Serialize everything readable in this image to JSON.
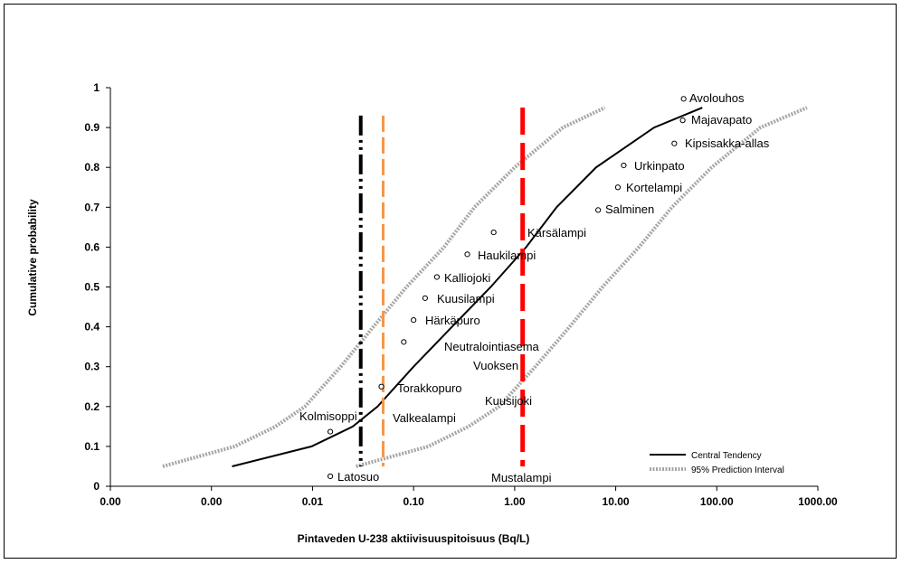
{
  "chart_data": {
    "type": "line",
    "xlabel": "Pintaveden U-238 aktiivisuuspitoisuus (Bq/L)",
    "ylabel": "Cumulative probability",
    "x_scale": "log",
    "xlim": [
      0.0001,
      1000
    ],
    "ylim": [
      0,
      1
    ],
    "grid": false,
    "legend_position": "bottom-right",
    "x_ticks": [
      {
        "value": 0.0001,
        "label": "0.00"
      },
      {
        "value": 0.001,
        "label": "0.00"
      },
      {
        "value": 0.01,
        "label": "0.01"
      },
      {
        "value": 0.1,
        "label": "0.10"
      },
      {
        "value": 1,
        "label": "1.00"
      },
      {
        "value": 10,
        "label": "10.00"
      },
      {
        "value": 100,
        "label": "100.00"
      },
      {
        "value": 1000,
        "label": "1000.00"
      }
    ],
    "y_ticks": [
      {
        "value": 0,
        "label": "0"
      },
      {
        "value": 0.1,
        "label": "0.1"
      },
      {
        "value": 0.2,
        "label": "0.2"
      },
      {
        "value": 0.3,
        "label": "0.3"
      },
      {
        "value": 0.4,
        "label": "0.4"
      },
      {
        "value": 0.5,
        "label": "0.5"
      },
      {
        "value": 0.6,
        "label": "0.6"
      },
      {
        "value": 0.7,
        "label": "0.7"
      },
      {
        "value": 0.8,
        "label": "0.8"
      },
      {
        "value": 0.9,
        "label": "0.9"
      },
      {
        "value": 1,
        "label": "1"
      }
    ],
    "series": [
      {
        "name": "Central Tendency",
        "style": "solid",
        "color": "#000000",
        "x": [
          0.0016,
          0.0098,
          0.025,
          0.044,
          0.1,
          0.24,
          0.58,
          1.3,
          2.6,
          6.4,
          24,
          72
        ],
        "y": [
          0.05,
          0.1,
          0.15,
          0.2,
          0.3,
          0.4,
          0.5,
          0.6,
          0.7,
          0.8,
          0.9,
          0.95
        ]
      },
      {
        "name": "95% Prediction Interval",
        "style": "dotted",
        "color": "#a6a6a6",
        "x": [
          0.00033,
          0.0017,
          0.0043,
          0.0084,
          0.019,
          0.04,
          0.085,
          0.2,
          0.4,
          1.0,
          3.0,
          7.8
        ],
        "y": [
          0.05,
          0.1,
          0.15,
          0.2,
          0.3,
          0.4,
          0.5,
          0.6,
          0.7,
          0.8,
          0.9,
          0.95
        ]
      },
      {
        "name": "",
        "style": "dotted",
        "color": "#a6a6a6",
        "x": [
          0.027,
          0.14,
          0.35,
          0.7,
          1.6,
          3.5,
          7.4,
          17,
          36,
          89,
          270,
          780
        ],
        "y": [
          0.05,
          0.1,
          0.15,
          0.2,
          0.3,
          0.4,
          0.5,
          0.6,
          0.7,
          0.8,
          0.9,
          0.95
        ]
      }
    ],
    "reference_lines": [
      {
        "x": 0.03,
        "y_range": [
          0.05,
          0.93
        ],
        "color": "#000000",
        "style": "dash-dot-dot"
      },
      {
        "x": 0.05,
        "y_range": [
          0.05,
          0.93
        ],
        "color": "#f79646",
        "style": "dashed"
      },
      {
        "x": 1.2,
        "y_range": [
          0.05,
          0.95
        ],
        "color": "#ff0000",
        "style": "dashed"
      }
    ],
    "points": [
      {
        "name": "Latosuo",
        "x": 0.015,
        "y": 0.025
      },
      {
        "name": "Kolmisoppi",
        "x": 0.015,
        "y": 0.137
      },
      {
        "name": "Torakkopuro",
        "x": 0.048,
        "y": 0.25
      },
      {
        "name": "Neutralointiasema",
        "x": 0.08,
        "y": 0.362
      },
      {
        "name": "Härkäpuro",
        "x": 0.1,
        "y": 0.417
      },
      {
        "name": "Kuusilampi",
        "x": 0.13,
        "y": 0.472
      },
      {
        "name": "Kalliojoki",
        "x": 0.17,
        "y": 0.525
      },
      {
        "name": "Haukilampi",
        "x": 0.34,
        "y": 0.582
      },
      {
        "name": "Kärsälampi",
        "x": 0.62,
        "y": 0.637
      },
      {
        "name": "Salminen",
        "x": 6.7,
        "y": 0.693
      },
      {
        "name": "Kortelampi",
        "x": 10.5,
        "y": 0.75
      },
      {
        "name": "Urkinpato",
        "x": 12,
        "y": 0.805
      },
      {
        "name": "Kipsisakka-allas",
        "x": 38,
        "y": 0.86
      },
      {
        "name": "Majavapato",
        "x": 46,
        "y": 0.918
      },
      {
        "name": "Avolouhos",
        "x": 47,
        "y": 0.972
      }
    ],
    "unmarked_labels": [
      "Vuoksen",
      "Valkealampi",
      "Kuusijoki",
      "Mustalampi"
    ]
  }
}
